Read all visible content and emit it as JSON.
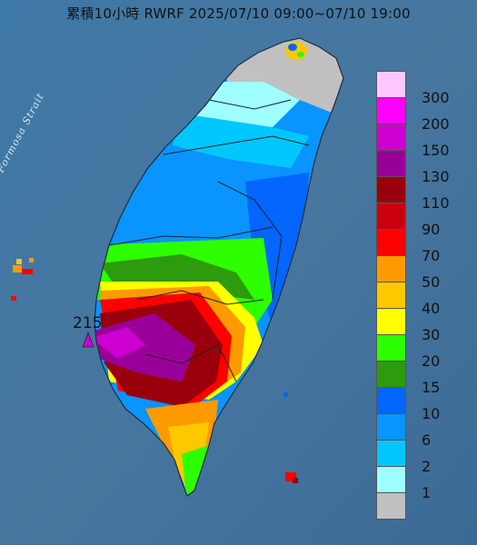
{
  "title": "累積10小時 RWRF 2025/07/10 09:00~07/10 19:00",
  "strait_label": "Formosa Strait",
  "max_label": "215",
  "legend": {
    "ticks": [
      "300",
      "200",
      "150",
      "130",
      "110",
      "90",
      "70",
      "50",
      "40",
      "30",
      "20",
      "15",
      "10",
      "6",
      "2",
      "1"
    ],
    "colors": [
      "#fdc8fe",
      "#fd00fc",
      "#cc00d0",
      "#990099",
      "#99000c",
      "#ca000f",
      "#fd0000",
      "#fd9a00",
      "#fec800",
      "#ffff00",
      "#2dfe00",
      "#2e9a0e",
      "#0465ff",
      "#0a94fe",
      "#00c8fe",
      "#9ffffe",
      "#c0c0c0"
    ]
  }
}
